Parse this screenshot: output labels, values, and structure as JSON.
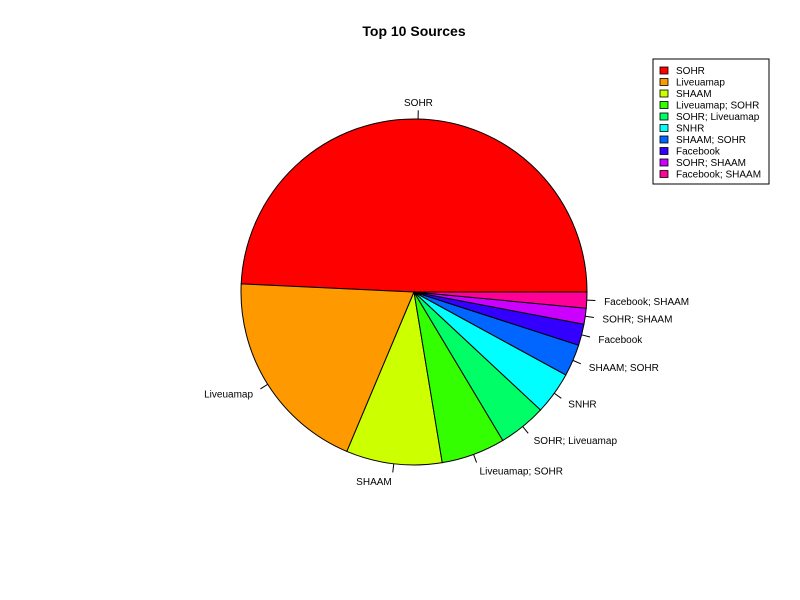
{
  "chart_data": {
    "type": "pie",
    "title": "Top 10 Sources",
    "categories": [
      "SOHR",
      "Liveuamap",
      "SHAAM",
      "Liveuamap; SOHR",
      "SOHR; Liveuamap",
      "SNHR",
      "SHAAM; SOHR",
      "Facebook",
      "SOHR; SHAAM",
      "Facebook; SHAAM"
    ],
    "values": [
      49.5,
      19.5,
      9.0,
      6.0,
      4.5,
      4.0,
      3.0,
      2.0,
      1.5,
      1.5
    ],
    "colors": [
      "#FF0000",
      "#FF9900",
      "#CCFF00",
      "#33FF00",
      "#00FF66",
      "#00FFFF",
      "#0066FF",
      "#3300FF",
      "#CC00FF",
      "#FF0099"
    ],
    "start_angle_deg": 0,
    "direction": "counterclockwise",
    "legend": {
      "placement": "top-right",
      "entries": [
        "SOHR",
        "Liveuamap",
        "SHAAM",
        "Liveuamap; SOHR",
        "SOHR; Liveuamap",
        "SNHR",
        "SHAAM; SOHR",
        "Facebook",
        "SOHR; SHAAM",
        "Facebook; SHAAM"
      ]
    }
  }
}
